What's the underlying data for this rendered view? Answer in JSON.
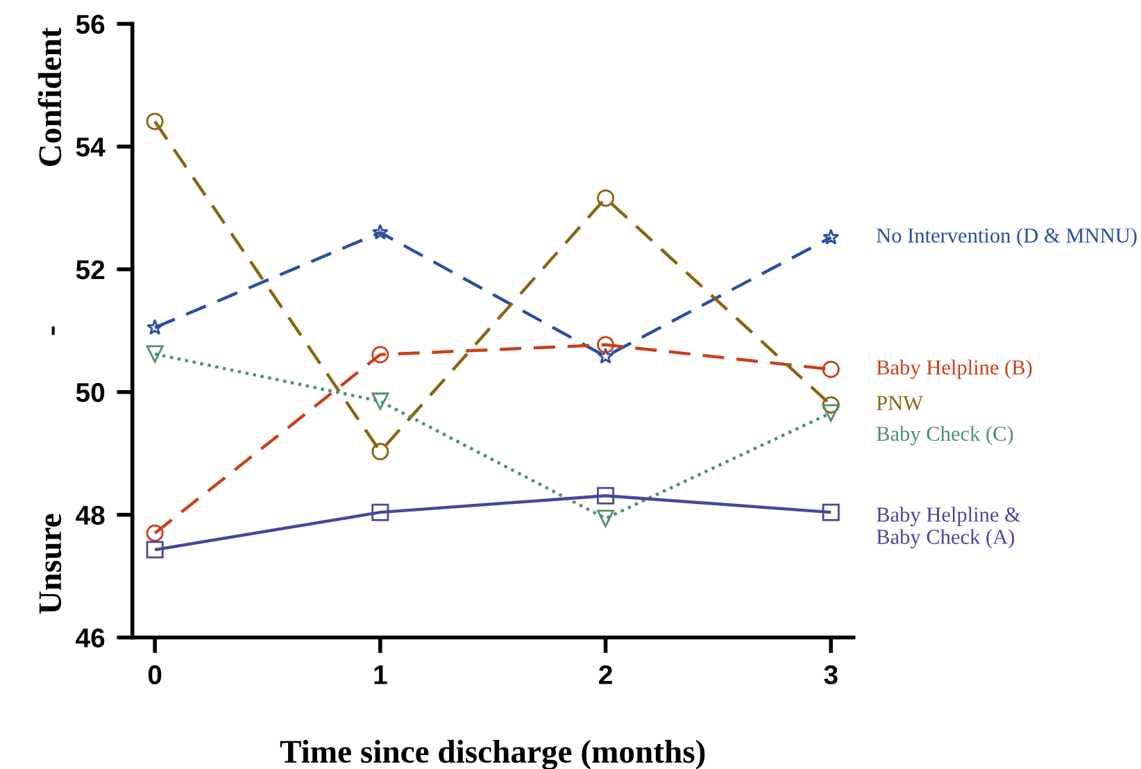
{
  "chart_data": {
    "type": "line",
    "xlabel": "Time since discharge (months)",
    "ylabel": "Unsure - Confident",
    "x": [
      0,
      1,
      2,
      3
    ],
    "xlim": [
      -0.1,
      3.1
    ],
    "xticks": [
      0,
      1,
      2,
      3
    ],
    "ylim": [
      46,
      56
    ],
    "yticks": [
      46,
      48,
      50,
      52,
      54,
      56
    ],
    "grid": false,
    "legend": false,
    "series": [
      {
        "name": "No Intervention (D & MNNU)",
        "color": "#2a4fa0",
        "marker": "star",
        "line_style": "dashed",
        "values": [
          51.05,
          52.6,
          50.58,
          52.52
        ]
      },
      {
        "name": "Baby Helpline (B)",
        "color": "#c8401a",
        "marker": "circle",
        "line_style": "dashed",
        "values": [
          47.7,
          50.61,
          50.77,
          50.37
        ]
      },
      {
        "name": "PNW",
        "color": "#8a6412",
        "marker": "circle",
        "line_style": "dashed",
        "values": [
          54.41,
          49.03,
          53.16,
          49.79
        ]
      },
      {
        "name": "Baby Check (C)",
        "color": "#4f8f6a",
        "marker": "triangle",
        "line_style": "dotted",
        "values": [
          50.62,
          49.85,
          47.94,
          49.66
        ]
      },
      {
        "name": "Baby Helpline &\nBaby Check (A)",
        "color": "#4646a0",
        "marker": "square",
        "line_style": "solid",
        "values": [
          47.43,
          48.04,
          48.31,
          48.04
        ]
      }
    ]
  }
}
